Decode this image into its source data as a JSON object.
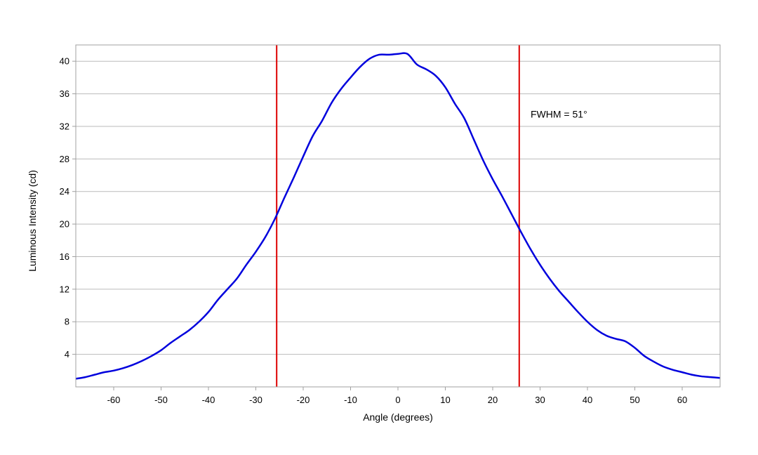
{
  "chart_data": {
    "type": "line",
    "title": "",
    "xlabel": "Angle (degrees)",
    "ylabel": "Luminous Intensity (cd)",
    "xlim": [
      -68,
      68
    ],
    "ylim": [
      0,
      42
    ],
    "xticks": [
      -60,
      -50,
      -40,
      -30,
      -20,
      -10,
      0,
      10,
      20,
      30,
      40,
      50,
      60
    ],
    "yticks": [
      4,
      8,
      12,
      16,
      20,
      24,
      28,
      32,
      36,
      40
    ],
    "grid": "horizontal",
    "line_color": "#0000dd",
    "marker_color": "#dd0000",
    "grid_color": "#bbbbbb",
    "markers": [
      -25.6,
      25.6
    ],
    "annotation": {
      "text": "FWHM = 51°",
      "x": 28,
      "y": 33.5
    },
    "series": [
      {
        "x": [
          -68,
          -66,
          -64,
          -62,
          -60,
          -58,
          -56,
          -54,
          -52,
          -50,
          -48,
          -46,
          -44,
          -42,
          -40,
          -38,
          -36,
          -34,
          -32,
          -30,
          -28,
          -26,
          -24,
          -22,
          -20,
          -18,
          -16,
          -14,
          -12,
          -10,
          -8,
          -6,
          -4,
          -2,
          0,
          2,
          4,
          6,
          8,
          10,
          12,
          14,
          16,
          18,
          20,
          22,
          24,
          26,
          28,
          30,
          32,
          34,
          36,
          38,
          40,
          42,
          44,
          46,
          48,
          50,
          52,
          54,
          56,
          58,
          60,
          62,
          64,
          66,
          68
        ],
        "values": [
          1.0,
          1.2,
          1.5,
          1.8,
          2.0,
          2.3,
          2.7,
          3.2,
          3.8,
          4.5,
          5.4,
          6.2,
          7.0,
          8.0,
          9.2,
          10.7,
          12.0,
          13.3,
          15.0,
          16.6,
          18.4,
          20.6,
          23.2,
          25.7,
          28.3,
          30.8,
          32.7,
          34.9,
          36.6,
          38.0,
          39.3,
          40.3,
          40.8,
          40.8,
          40.9,
          40.9,
          39.6,
          39.0,
          38.2,
          36.8,
          34.8,
          33.0,
          30.4,
          27.8,
          25.5,
          23.4,
          21.2,
          19.0,
          16.9,
          15.0,
          13.3,
          11.8,
          10.5,
          9.2,
          8.0,
          7.0,
          6.3,
          5.9,
          5.6,
          4.8,
          3.8,
          3.1,
          2.5,
          2.1,
          1.8,
          1.5,
          1.3,
          1.2,
          1.1
        ]
      }
    ]
  }
}
